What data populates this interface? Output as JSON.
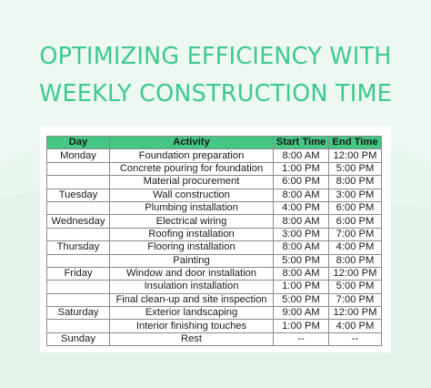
{
  "title": {
    "line1": "OPTIMIZING EFFICIENCY WITH",
    "line2": "WEEKLY CONSTRUCTION TIME"
  },
  "colors": {
    "background": "#e9f6ee",
    "accent": "#3ec98d",
    "header_fill": "#43c782"
  },
  "table": {
    "headers": {
      "day": "Day",
      "activity": "Activity",
      "start": "Start Time",
      "end": "End Time"
    },
    "rows": [
      {
        "day": "Monday",
        "activity": "Foundation preparation",
        "start": "8:00 AM",
        "end": "12:00 PM"
      },
      {
        "day": "",
        "activity": "Concrete pouring for foundation",
        "start": "1:00 PM",
        "end": "5:00 PM"
      },
      {
        "day": "",
        "activity": "Material procurement",
        "start": "6:00 PM",
        "end": "8:00 PM"
      },
      {
        "day": "Tuesday",
        "activity": "Wall construction",
        "start": "8:00 AM",
        "end": "3:00 PM"
      },
      {
        "day": "",
        "activity": "Plumbing installation",
        "start": "4:00 PM",
        "end": "6:00 PM"
      },
      {
        "day": "Wednesday",
        "activity": "Electrical wiring",
        "start": "8:00 AM",
        "end": "6:00 PM"
      },
      {
        "day": "",
        "activity": "Roofing installation",
        "start": "3:00 PM",
        "end": "7:00 PM"
      },
      {
        "day": "Thursday",
        "activity": "Flooring installation",
        "start": "8:00 AM",
        "end": "4:00 PM"
      },
      {
        "day": "",
        "activity": "Painting",
        "start": "5:00 PM",
        "end": "8:00 PM"
      },
      {
        "day": "Friday",
        "activity": "Window and door installation",
        "start": "8:00 AM",
        "end": "12:00 PM"
      },
      {
        "day": "",
        "activity": "Insulation installation",
        "start": "1:00 PM",
        "end": "5:00 PM"
      },
      {
        "day": "",
        "activity": "Final clean-up and site inspection",
        "start": "5:00 PM",
        "end": "7:00 PM"
      },
      {
        "day": "Saturday",
        "activity": "Exterior landscaping",
        "start": "9:00 AM",
        "end": "12:00 PM"
      },
      {
        "day": "",
        "activity": "Interior finishing touches",
        "start": "1:00 PM",
        "end": "4:00 PM"
      },
      {
        "day": "Sunday",
        "activity": "Rest",
        "start": "--",
        "end": "--"
      }
    ]
  }
}
